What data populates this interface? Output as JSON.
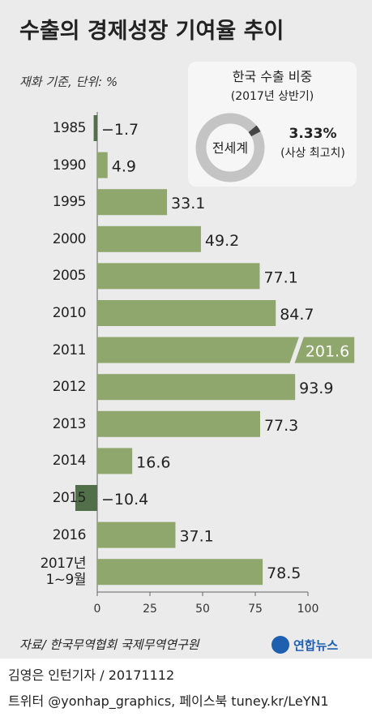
{
  "chart_data": {
    "type": "barh",
    "title": "수출의 경제성장 기여율 추이",
    "subtitle": "재화 기준, 단위: %",
    "categories": [
      "1985",
      "1990",
      "1995",
      "2000",
      "2005",
      "2010",
      "2011",
      "2012",
      "2013",
      "2014",
      "2015",
      "2016",
      "2017년\n1~9월"
    ],
    "values": [
      -1.7,
      4.9,
      33.1,
      49.2,
      77.1,
      84.7,
      201.6,
      93.9,
      77.3,
      16.6,
      -10.4,
      37.1,
      78.5
    ],
    "value_labels": [
      "−1.7",
      "4.9",
      "33.1",
      "49.2",
      "77.1",
      "84.7",
      "201.6",
      "93.9",
      "77.3",
      "16.6",
      "−10.4",
      "37.1",
      "78.5"
    ],
    "color": "#8fa66c",
    "negative_color": "#51704a",
    "xlim": [
      -12,
      122
    ],
    "xticks": [
      0,
      25,
      50,
      75,
      100
    ],
    "source": "자료/ 한국무역협회 국제무역연구원"
  },
  "inset": {
    "title": "한국 수출 비중",
    "subtitle": "(2017년 상반기)",
    "center_label": "전세계",
    "value": 3.33,
    "value_label": "3.33%",
    "note": "(사상 최고치)"
  },
  "footer": {
    "logo": "연합뉴스",
    "credit": "김영은 인턴기자 / 20171112",
    "social": "트위터 @yonhap_graphics, 페이스북 tuney.kr/LeYN1"
  }
}
